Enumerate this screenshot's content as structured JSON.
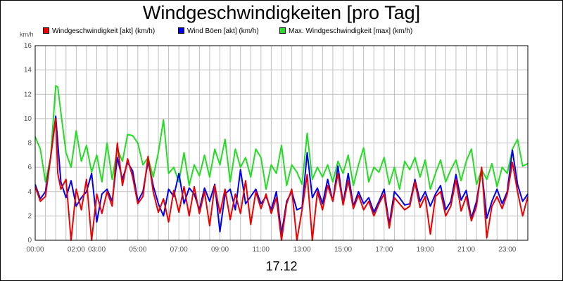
{
  "chart_data": {
    "type": "line",
    "title": "Windgeschwindigkeiten [pro Tag]",
    "ylabel": "km/h",
    "xlabel": "17.12",
    "ylim": [
      0,
      16
    ],
    "xlim": [
      0,
      24
    ],
    "y_ticks": [
      0,
      2,
      4,
      6,
      8,
      10,
      12,
      14,
      16
    ],
    "x_ticks": [
      {
        "x": 0,
        "label": "00:00"
      },
      {
        "x": 2,
        "label": "02:00"
      },
      {
        "x": 3,
        "label": "03:00"
      },
      {
        "x": 5,
        "label": "05:00"
      },
      {
        "x": 7,
        "label": "07:00"
      },
      {
        "x": 9,
        "label": "09:00"
      },
      {
        "x": 11,
        "label": "11:00"
      },
      {
        "x": 13,
        "label": "13:00"
      },
      {
        "x": 15,
        "label": "15:00"
      },
      {
        "x": 17,
        "label": "17:00"
      },
      {
        "x": 19,
        "label": "19:00"
      },
      {
        "x": 21,
        "label": "21:00"
      },
      {
        "x": 23,
        "label": "23:00"
      }
    ],
    "grid": true,
    "legend": "top-left",
    "series": [
      {
        "name": "Max. Windgeschwindigkeit [max] (km/h)",
        "color": "#22dd22",
        "x": [
          0,
          0.25,
          0.5,
          0.75,
          1,
          1.1,
          1.25,
          1.5,
          1.75,
          2,
          2.25,
          2.5,
          2.75,
          3,
          3.25,
          3.5,
          3.75,
          4,
          4.25,
          4.5,
          4.75,
          5,
          5.25,
          5.5,
          5.75,
          6,
          6.25,
          6.5,
          6.75,
          7,
          7.25,
          7.5,
          7.75,
          8,
          8.25,
          8.5,
          8.75,
          9,
          9.25,
          9.5,
          9.75,
          10,
          10.25,
          10.5,
          10.75,
          11,
          11.25,
          11.5,
          11.75,
          12,
          12.25,
          12.5,
          12.75,
          13,
          13.25,
          13.5,
          13.75,
          14,
          14.25,
          14.5,
          14.75,
          15,
          15.25,
          15.5,
          15.75,
          16,
          16.25,
          16.5,
          16.75,
          17,
          17.25,
          17.5,
          17.75,
          18,
          18.25,
          18.5,
          18.75,
          19,
          19.25,
          19.5,
          19.75,
          20,
          20.25,
          20.5,
          20.75,
          21,
          21.25,
          21.5,
          21.75,
          22,
          22.25,
          22.5,
          22.75,
          23,
          23.25,
          23.5,
          23.75,
          24
        ],
        "values": [
          8.5,
          7.5,
          4.8,
          6.8,
          12.7,
          12.6,
          10.5,
          7.2,
          6.0,
          9.0,
          6.5,
          7.8,
          5.6,
          7.0,
          4.8,
          8.0,
          5.0,
          7.5,
          6.5,
          8.7,
          8.6,
          8.0,
          6.2,
          6.8,
          5.2,
          7.2,
          9.9,
          5.5,
          6.0,
          4.8,
          7.2,
          4.5,
          6.2,
          5.3,
          7.0,
          5.2,
          7.5,
          6.2,
          8.3,
          4.8,
          7.5,
          6.0,
          6.8,
          5.2,
          7.5,
          6.8,
          4.2,
          6.2,
          5.5,
          7.8,
          4.5,
          6.2,
          5.6,
          4.6,
          8.8,
          5.0,
          6.0,
          5.2,
          6.2,
          4.8,
          6.5,
          5.5,
          7.0,
          4.5,
          6.2,
          7.6,
          4.8,
          6.0,
          5.6,
          6.8,
          4.6,
          6.0,
          4.2,
          6.5,
          5.8,
          6.8,
          5.2,
          6.6,
          4.2,
          5.5,
          6.6,
          4.8,
          5.8,
          6.6,
          4.9,
          6.5,
          7.5,
          4.6,
          5.8,
          5.0,
          6.3,
          4.4,
          6.0,
          5.5,
          7.5,
          8.3,
          6.1,
          6.3
        ]
      },
      {
        "name": "Wind Böen [akt] (km/h)",
        "color": "#0000ee",
        "x": [
          0,
          0.25,
          0.5,
          0.75,
          1,
          1.1,
          1.25,
          1.5,
          1.75,
          2,
          2.25,
          2.5,
          2.75,
          3,
          3.25,
          3.5,
          3.75,
          4,
          4.25,
          4.5,
          4.75,
          5,
          5.25,
          5.5,
          5.75,
          6,
          6.25,
          6.5,
          6.75,
          7,
          7.25,
          7.5,
          7.75,
          8,
          8.25,
          8.5,
          8.75,
          9,
          9.25,
          9.5,
          9.75,
          10,
          10.25,
          10.5,
          10.75,
          11,
          11.25,
          11.5,
          11.75,
          12,
          12.25,
          12.5,
          12.75,
          13,
          13.25,
          13.5,
          13.75,
          14,
          14.25,
          14.5,
          14.75,
          15,
          15.25,
          15.5,
          15.75,
          16,
          16.25,
          16.5,
          16.75,
          17,
          17.25,
          17.5,
          17.75,
          18,
          18.25,
          18.5,
          18.75,
          19,
          19.25,
          19.5,
          19.75,
          20,
          20.25,
          20.5,
          20.75,
          21,
          21.25,
          21.5,
          21.75,
          22,
          22.25,
          22.5,
          22.75,
          23,
          23.25,
          23.5,
          23.75,
          24
        ],
        "values": [
          4.6,
          3.4,
          4.0,
          6.8,
          10.2,
          8.0,
          4.8,
          3.5,
          4.9,
          2.8,
          3.5,
          4.0,
          5.5,
          1.5,
          3.8,
          4.2,
          3.2,
          6.8,
          5.0,
          6.4,
          5.7,
          3.2,
          4.0,
          6.5,
          4.5,
          3.0,
          2.0,
          4.2,
          3.6,
          5.5,
          3.0,
          4.3,
          3.8,
          2.5,
          4.3,
          3.2,
          4.6,
          0.7,
          3.8,
          4.2,
          2.5,
          5.8,
          3.0,
          3.6,
          4.2,
          3.0,
          3.6,
          2.5,
          4.0,
          0.5,
          3.2,
          4.0,
          2.5,
          2.7,
          7.2,
          3.5,
          4.3,
          3.0,
          5.0,
          3.2,
          6.1,
          3.0,
          5.5,
          2.8,
          4.0,
          3.0,
          3.5,
          2.3,
          3.2,
          4.2,
          1.3,
          4.0,
          3.5,
          2.9,
          3.0,
          5.0,
          3.2,
          4.0,
          2.8,
          3.8,
          4.5,
          2.5,
          3.2,
          5.4,
          3.3,
          4.1,
          1.8,
          3.2,
          5.8,
          1.8,
          3.2,
          4.2,
          3.0,
          4.0,
          7.4,
          4.6,
          3.2,
          3.8
        ]
      },
      {
        "name": "Windgeschwindigkeit [akt] (km/h)",
        "color": "#ee0000",
        "x": [
          0,
          0.25,
          0.5,
          0.75,
          1,
          1.1,
          1.25,
          1.5,
          1.75,
          2,
          2.25,
          2.5,
          2.75,
          3,
          3.25,
          3.5,
          3.75,
          4,
          4.25,
          4.5,
          4.75,
          5,
          5.25,
          5.5,
          5.75,
          6,
          6.25,
          6.5,
          6.75,
          7,
          7.25,
          7.5,
          7.75,
          8,
          8.25,
          8.5,
          8.75,
          9,
          9.25,
          9.5,
          9.75,
          10,
          10.25,
          10.5,
          10.75,
          11,
          11.25,
          11.5,
          11.75,
          12,
          12.25,
          12.5,
          12.75,
          13,
          13.25,
          13.5,
          13.75,
          14,
          14.25,
          14.5,
          14.75,
          15,
          15.25,
          15.5,
          15.75,
          16,
          16.25,
          16.5,
          16.75,
          17,
          17.25,
          17.5,
          17.75,
          18,
          18.25,
          18.5,
          18.75,
          19,
          19.25,
          19.5,
          19.75,
          20,
          20.25,
          20.5,
          20.75,
          21,
          21.25,
          21.5,
          21.75,
          22,
          22.25,
          22.5,
          22.75,
          23,
          23.25,
          23.5,
          23.75,
          24
        ],
        "values": [
          4.4,
          3.2,
          3.6,
          6.8,
          10.0,
          5.5,
          4.2,
          5.0,
          0.0,
          4.2,
          2.5,
          5.0,
          0.0,
          3.8,
          2.2,
          4.0,
          2.8,
          8.0,
          4.5,
          6.7,
          5.2,
          3.0,
          3.6,
          6.9,
          4.0,
          2.3,
          3.4,
          1.5,
          4.1,
          2.3,
          4.4,
          2.0,
          4.4,
          2.2,
          4.0,
          1.2,
          4.5,
          2.2,
          4.2,
          1.7,
          3.8,
          2.2,
          4.9,
          1.3,
          4.0,
          2.6,
          3.8,
          2.2,
          3.5,
          0.0,
          3.0,
          4.2,
          0.0,
          2.5,
          5.4,
          0.0,
          4.0,
          2.5,
          4.5,
          3.2,
          5.5,
          2.9,
          4.9,
          2.6,
          3.7,
          2.5,
          3.2,
          2.0,
          3.0,
          3.8,
          1.0,
          3.5,
          3.0,
          2.5,
          2.8,
          4.8,
          2.7,
          3.6,
          0.5,
          3.6,
          4.0,
          2.0,
          2.8,
          5.0,
          2.4,
          3.6,
          1.6,
          2.8,
          6.0,
          0.2,
          2.8,
          3.6,
          2.6,
          3.8,
          6.4,
          4.0,
          2.0,
          3.6
        ]
      }
    ]
  }
}
